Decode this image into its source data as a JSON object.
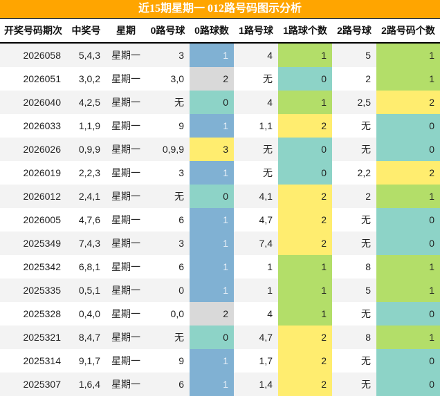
{
  "title": "近15期星期一 012路号码图示分析",
  "columns": [
    "开奖号码期次",
    "中奖号",
    "星期",
    "0路号球",
    "0路球数",
    "1路号球",
    "1路球个数",
    "2路号球",
    "2路号码个数"
  ],
  "colors": {
    "header_bar": "#FFA500",
    "count_0": "#8dd3c7",
    "count_1_zero_road": "#80b1d3",
    "count_1": "#b3de69",
    "count_2_zero_road": "#d9d9d9",
    "count_2": "#ffed6f",
    "count_3": "#ffed6f"
  },
  "rows": [
    {
      "period": "2026058",
      "numbers": "5,4,3",
      "weekday": "星期一",
      "r0": "3",
      "r0n": "1",
      "r1": "4",
      "r1n": "1",
      "r2": "5",
      "r2n": "1"
    },
    {
      "period": "2026051",
      "numbers": "3,0,2",
      "weekday": "星期一",
      "r0": "3,0",
      "r0n": "2",
      "r1": "无",
      "r1n": "0",
      "r2": "2",
      "r2n": "1"
    },
    {
      "period": "2026040",
      "numbers": "4,2,5",
      "weekday": "星期一",
      "r0": "无",
      "r0n": "0",
      "r1": "4",
      "r1n": "1",
      "r2": "2,5",
      "r2n": "2"
    },
    {
      "period": "2026033",
      "numbers": "1,1,9",
      "weekday": "星期一",
      "r0": "9",
      "r0n": "1",
      "r1": "1,1",
      "r1n": "2",
      "r2": "无",
      "r2n": "0"
    },
    {
      "period": "2026026",
      "numbers": "0,9,9",
      "weekday": "星期一",
      "r0": "0,9,9",
      "r0n": "3",
      "r1": "无",
      "r1n": "0",
      "r2": "无",
      "r2n": "0"
    },
    {
      "period": "2026019",
      "numbers": "2,2,3",
      "weekday": "星期一",
      "r0": "3",
      "r0n": "1",
      "r1": "无",
      "r1n": "0",
      "r2": "2,2",
      "r2n": "2"
    },
    {
      "period": "2026012",
      "numbers": "2,4,1",
      "weekday": "星期一",
      "r0": "无",
      "r0n": "0",
      "r1": "4,1",
      "r1n": "2",
      "r2": "2",
      "r2n": "1"
    },
    {
      "period": "2026005",
      "numbers": "4,7,6",
      "weekday": "星期一",
      "r0": "6",
      "r0n": "1",
      "r1": "4,7",
      "r1n": "2",
      "r2": "无",
      "r2n": "0"
    },
    {
      "period": "2025349",
      "numbers": "7,4,3",
      "weekday": "星期一",
      "r0": "3",
      "r0n": "1",
      "r1": "7,4",
      "r1n": "2",
      "r2": "无",
      "r2n": "0"
    },
    {
      "period": "2025342",
      "numbers": "6,8,1",
      "weekday": "星期一",
      "r0": "6",
      "r0n": "1",
      "r1": "1",
      "r1n": "1",
      "r2": "8",
      "r2n": "1"
    },
    {
      "period": "2025335",
      "numbers": "0,5,1",
      "weekday": "星期一",
      "r0": "0",
      "r0n": "1",
      "r1": "1",
      "r1n": "1",
      "r2": "5",
      "r2n": "1"
    },
    {
      "period": "2025328",
      "numbers": "0,4,0",
      "weekday": "星期一",
      "r0": "0,0",
      "r0n": "2",
      "r1": "4",
      "r1n": "1",
      "r2": "无",
      "r2n": "0"
    },
    {
      "period": "2025321",
      "numbers": "8,4,7",
      "weekday": "星期一",
      "r0": "无",
      "r0n": "0",
      "r1": "4,7",
      "r1n": "2",
      "r2": "8",
      "r2n": "1"
    },
    {
      "period": "2025314",
      "numbers": "9,1,7",
      "weekday": "星期一",
      "r0": "9",
      "r0n": "1",
      "r1": "1,7",
      "r1n": "2",
      "r2": "无",
      "r2n": "0"
    },
    {
      "period": "2025307",
      "numbers": "1,6,4",
      "weekday": "星期一",
      "r0": "6",
      "r0n": "1",
      "r1": "1,4",
      "r1n": "2",
      "r2": "无",
      "r2n": "0"
    }
  ]
}
